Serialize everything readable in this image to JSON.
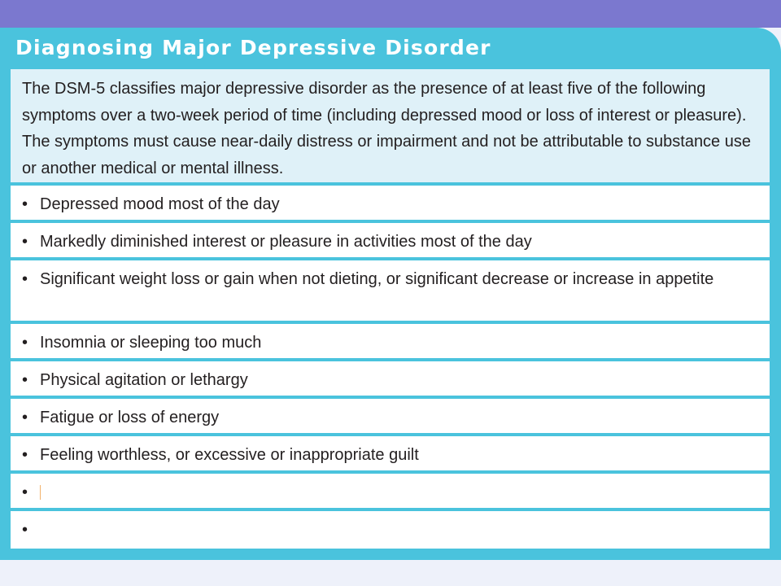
{
  "title": "Diagnosing Major Depressive Disorder",
  "intro": "The DSM-5 classifies major depressive disorder as the presence of at least five of the following symptoms over a two-week period of time (including depressed mood or loss of interest or pleasure). The symptoms must cause near-daily distress or impairment and not be attributable to substance use or another medical or mental illness.",
  "bullet_glyph": "•",
  "symptoms": [
    "Depressed mood most of the day",
    "Markedly diminished interest or pleasure in activities most of the day",
    "Significant weight loss or gain when not dieting, or significant decrease or increase in appetite",
    "Insomnia or sleeping too much",
    "Physical agitation or lethargy",
    "Fatigue or loss of energy",
    "Feeling worthless, or excessive or inappropriate guilt",
    "",
    ""
  ],
  "colors": {
    "top_band": "#7b78cf",
    "panel": "#4ac3dd",
    "intro_background": "#dff1f8",
    "row_background": "#ffffff",
    "text": "#231f20",
    "title_text": "#ffffff",
    "page_background": "#eef1fa"
  }
}
